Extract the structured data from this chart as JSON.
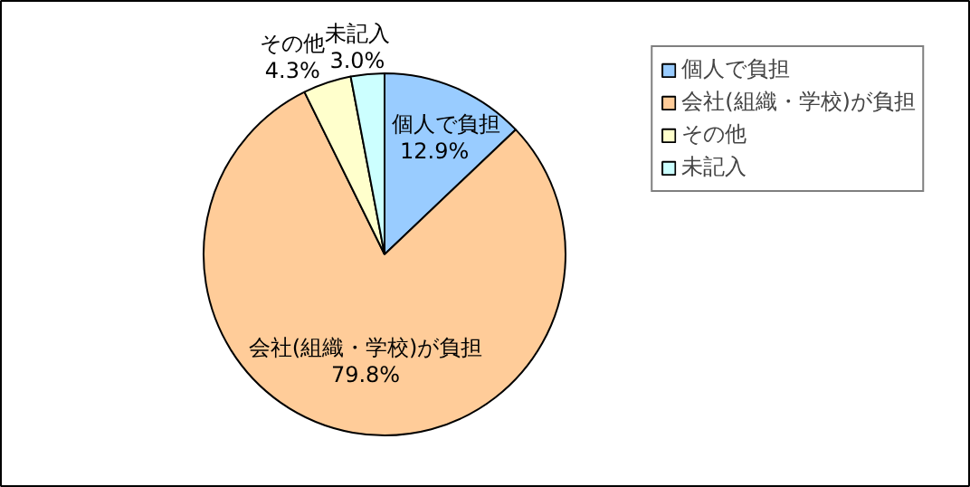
{
  "chart_data": {
    "type": "pie",
    "categories": [
      "個人で負担",
      "会社(組織・学校)が負担",
      "その他",
      "未記入"
    ],
    "values": [
      12.9,
      79.8,
      4.3,
      3.0
    ],
    "value_labels": [
      "12.9%",
      "79.8%",
      "4.3%",
      "3.0%"
    ],
    "colors": [
      "#99ccff",
      "#ffcc99",
      "#ffffcc",
      "#ccffff"
    ],
    "legend": "right"
  }
}
